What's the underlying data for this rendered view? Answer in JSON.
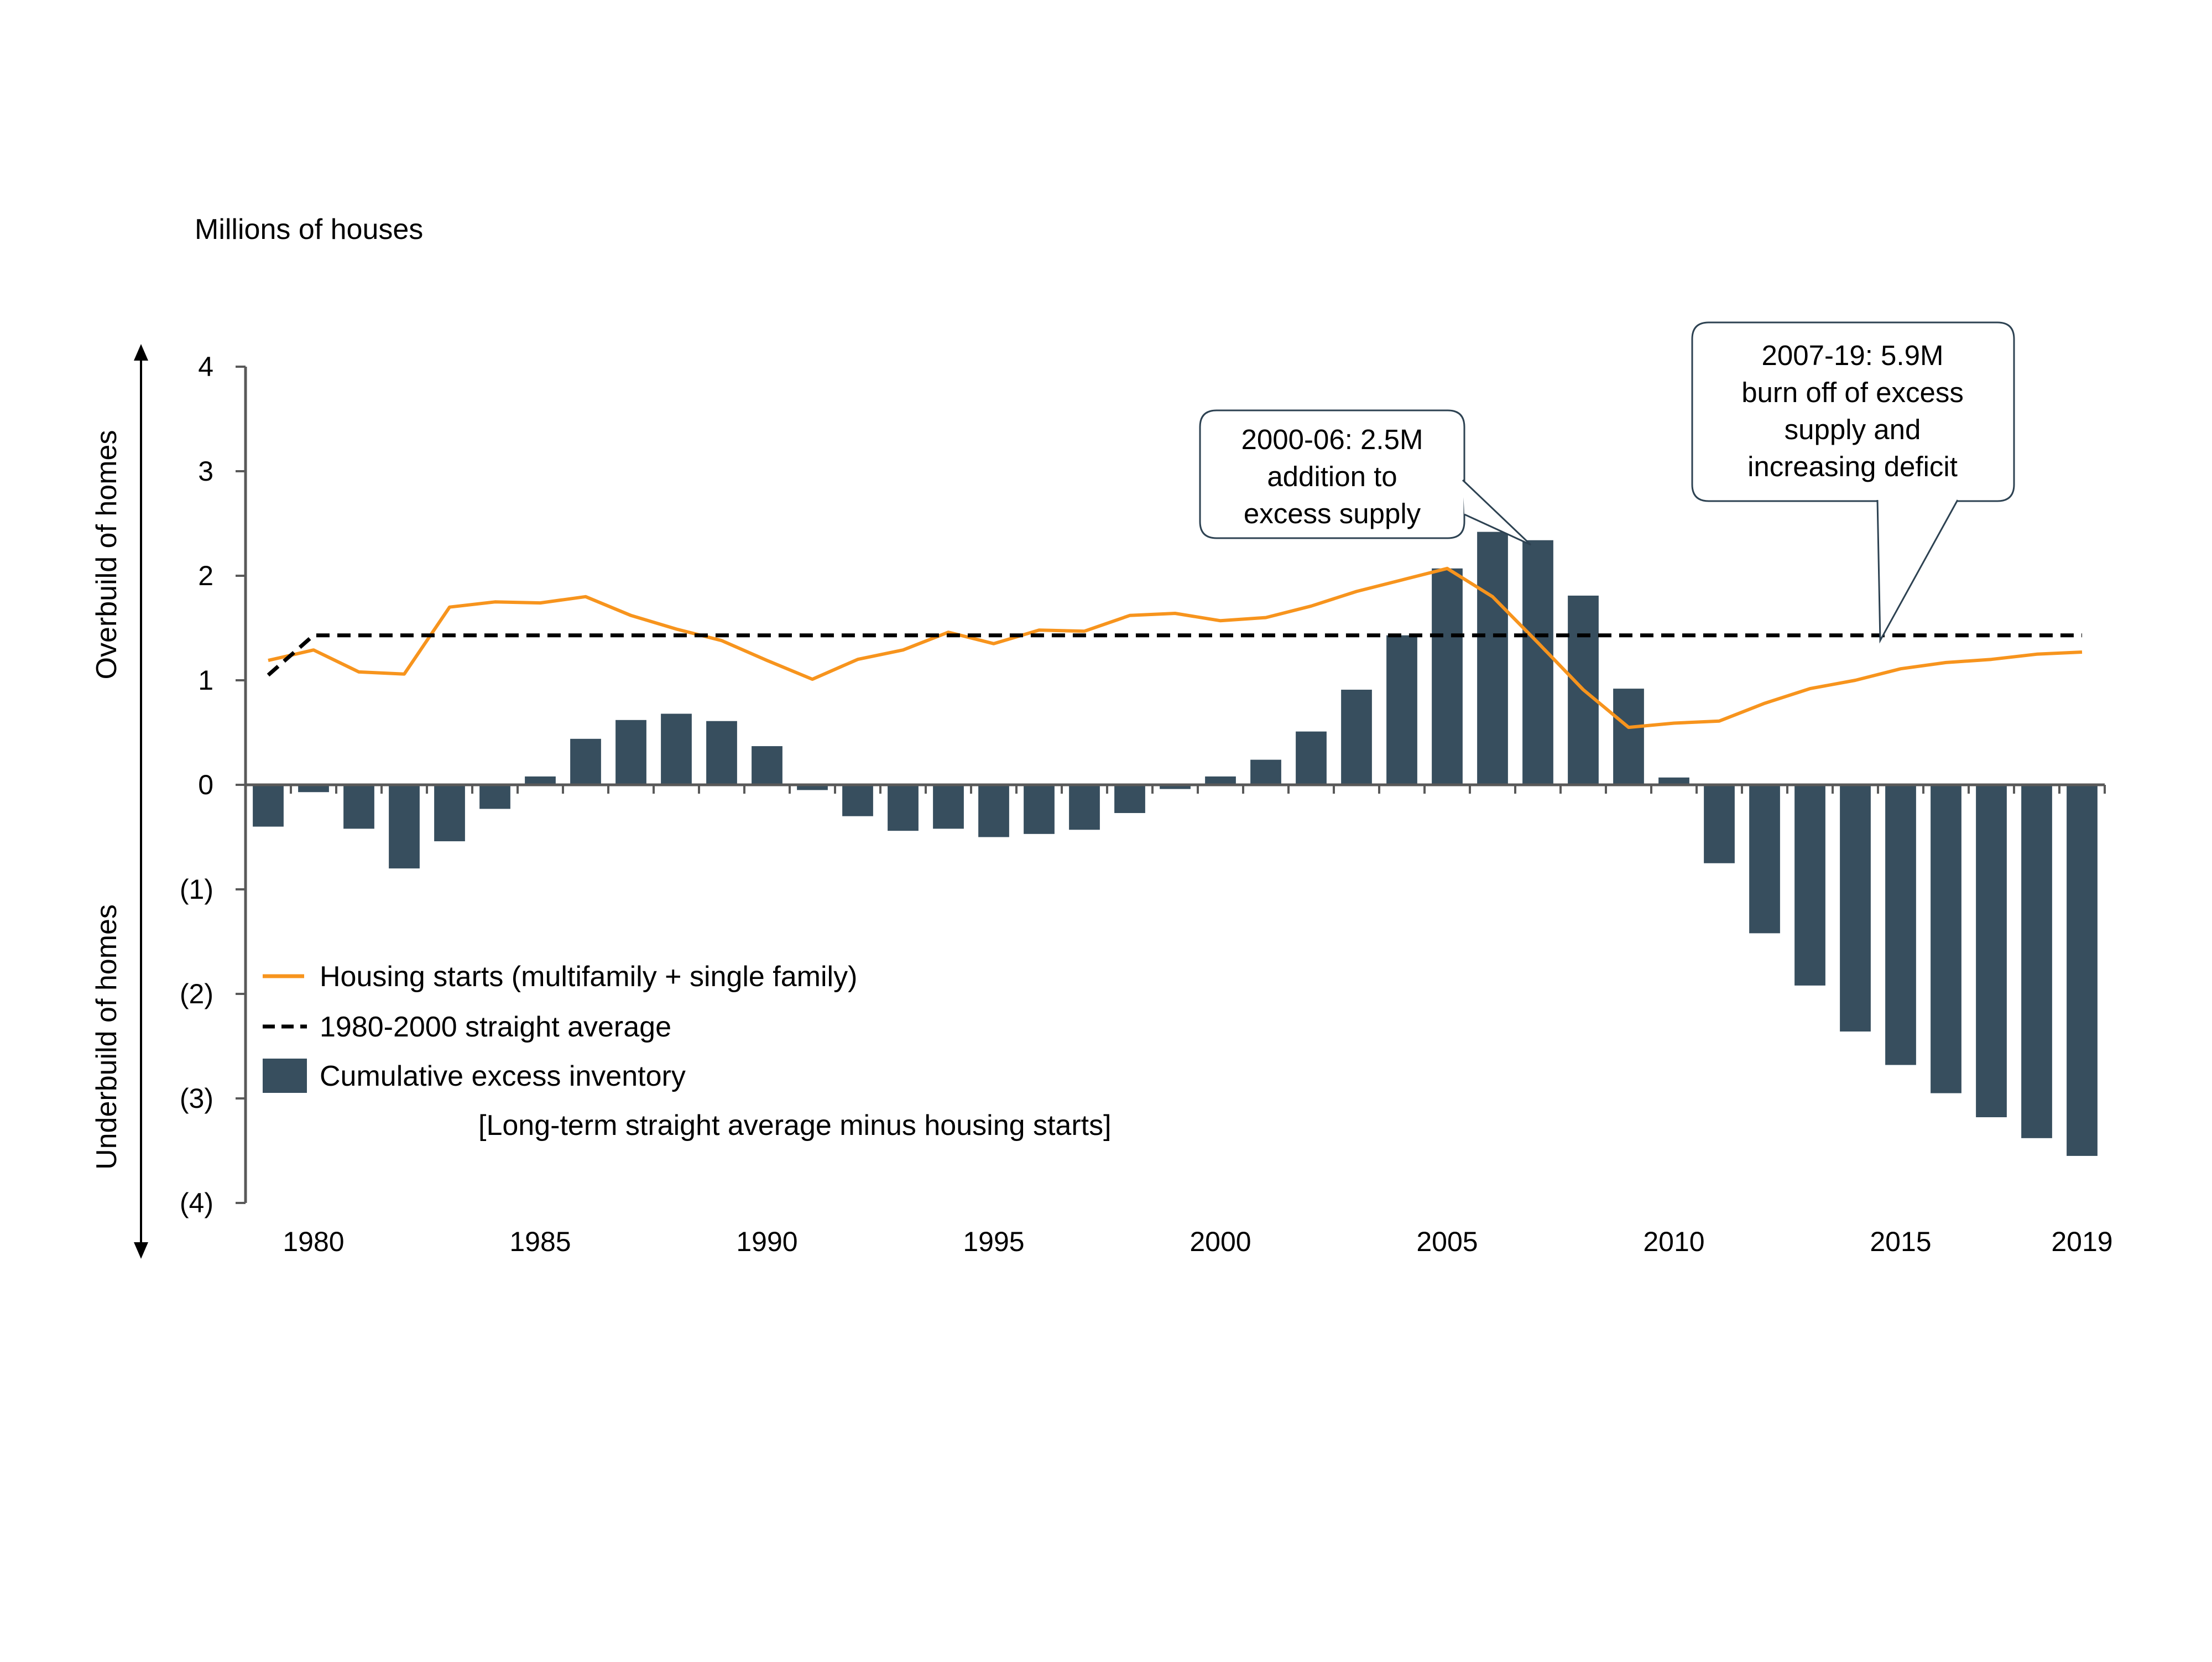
{
  "chart_data": {
    "type": "bar",
    "unit_label": "Millions of houses",
    "side_labels": {
      "upper": "Overbuild of homes",
      "lower": "Underbuild of homes"
    },
    "y_tick_labels": [
      "4",
      "3",
      "2",
      "1",
      "0",
      "(1)",
      "(2)",
      "(3)",
      "(4)"
    ],
    "y_ticks": [
      4,
      3,
      2,
      1,
      0,
      -1,
      -2,
      -3,
      -4
    ],
    "ylim": [
      -4,
      4
    ],
    "x_tick_labels": [
      "1980",
      "1985",
      "1990",
      "1995",
      "2000",
      "2005",
      "2010",
      "2015",
      "2019"
    ],
    "x_ticks": [
      1980,
      1985,
      1990,
      1995,
      2000,
      2005,
      2010,
      2015,
      2019
    ],
    "xlim": [
      1978.5,
      2019.5
    ],
    "x": [
      1979,
      1980,
      1981,
      1982,
      1983,
      1984,
      1985,
      1986,
      1987,
      1988,
      1989,
      1990,
      1991,
      1992,
      1993,
      1994,
      1995,
      1996,
      1997,
      1998,
      1999,
      2000,
      2001,
      2002,
      2003,
      2004,
      2005,
      2006,
      2007,
      2008,
      2009,
      2010,
      2011,
      2012,
      2013,
      2014,
      2015,
      2016,
      2017,
      2018,
      2019
    ],
    "series": [
      {
        "name": "Housing starts (multifamily + single family)",
        "type": "line",
        "color": "#F7941D",
        "values": [
          1.19,
          1.29,
          1.08,
          1.06,
          1.7,
          1.75,
          1.74,
          1.8,
          1.62,
          1.49,
          1.38,
          1.19,
          1.01,
          1.2,
          1.29,
          1.46,
          1.35,
          1.48,
          1.47,
          1.62,
          1.64,
          1.57,
          1.6,
          1.71,
          1.85,
          1.96,
          2.07,
          1.8,
          1.36,
          0.91,
          0.55,
          0.59,
          0.61,
          0.78,
          0.92,
          1.0,
          1.11,
          1.17,
          1.2,
          1.25,
          1.27
        ]
      },
      {
        "name": "1980-2000 straight average",
        "type": "line",
        "style": "dashed",
        "color": "#000000",
        "values": [
          1.05,
          1.43,
          1.43,
          1.43,
          1.43,
          1.43,
          1.43,
          1.43,
          1.43,
          1.43,
          1.43,
          1.43,
          1.43,
          1.43,
          1.43,
          1.43,
          1.43,
          1.43,
          1.43,
          1.43,
          1.43,
          1.43,
          1.43,
          1.43,
          1.43,
          1.43,
          1.43,
          1.43,
          1.43,
          1.43,
          1.43,
          1.43,
          1.43,
          1.43,
          1.43,
          1.43,
          1.43,
          1.43,
          1.43,
          1.43,
          1.43
        ]
      },
      {
        "name": "Cumulative excess inventory",
        "type": "bar",
        "color": "#374E5E",
        "values": [
          -0.4,
          -0.07,
          -0.42,
          -0.8,
          -0.54,
          -0.23,
          0.08,
          0.44,
          0.62,
          0.68,
          0.61,
          0.37,
          -0.05,
          -0.3,
          -0.44,
          -0.42,
          -0.5,
          -0.47,
          -0.43,
          -0.27,
          -0.04,
          0.08,
          0.24,
          0.51,
          0.91,
          1.43,
          2.07,
          2.42,
          2.34,
          1.81,
          0.92,
          0.07,
          -0.75,
          -1.42,
          -1.92,
          -2.36,
          -2.68,
          -2.95,
          -3.18,
          -3.38,
          -3.55
        ]
      }
    ],
    "legend": {
      "placement": "bottom-left",
      "entries": [
        "Housing starts (multifamily + single family)",
        "1980-2000 straight average",
        "Cumulative excess inventory"
      ],
      "note": "[Long-term straight average minus housing starts]"
    },
    "annotations": [
      {
        "lines": [
          "2000-06: 2.5M",
          "addition to",
          "excess supply"
        ],
        "points_to": {
          "x": 2007,
          "y": 2.34
        }
      },
      {
        "lines": [
          "2007-19: 5.9M",
          "burn off of excess",
          "supply and",
          "increasing deficit"
        ],
        "points_to": {
          "x": 2014.6,
          "y": 1.38
        }
      }
    ],
    "grid": false
  }
}
